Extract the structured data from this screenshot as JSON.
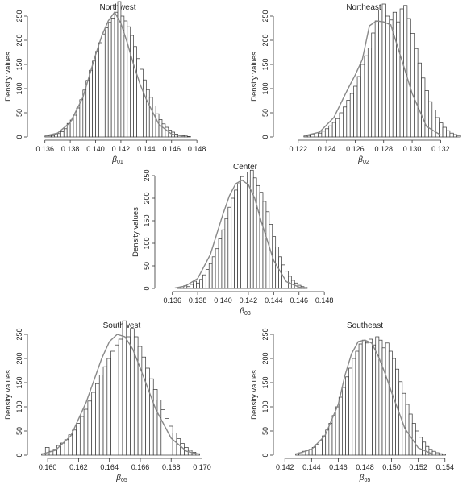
{
  "chart_data": [
    {
      "type": "bar",
      "title": "Northwest",
      "ylabel": "Density values",
      "xlabel": {
        "symbol": "β",
        "sub": "01"
      },
      "xlim": [
        0.135,
        0.1485
      ],
      "ylim": [
        0,
        250
      ],
      "xticks": [
        0.136,
        0.138,
        0.14,
        0.142,
        0.144,
        0.146,
        0.148
      ],
      "xtick_labels": [
        "0.136",
        "0.138",
        "0.140",
        "0.142",
        "0.144",
        "0.146",
        "0.148"
      ],
      "yticks": [
        0,
        50,
        100,
        150,
        200,
        250
      ],
      "ytick_labels": [
        "0",
        "50",
        "100",
        "150",
        "200",
        "250"
      ],
      "bin_start": 0.136,
      "bin_width": 0.00025,
      "values": [
        2,
        2,
        3,
        5,
        7,
        11,
        17,
        28,
        35,
        45,
        60,
        77,
        97,
        117,
        138,
        157,
        177,
        195,
        213,
        226,
        237,
        246,
        258,
        280,
        250,
        240,
        228,
        210,
        187,
        162,
        140,
        118,
        98,
        82,
        64,
        48,
        36,
        27,
        20,
        14,
        10,
        6,
        4,
        3,
        2,
        1
      ],
      "density_x": [
        0.136,
        0.137,
        0.138,
        0.139,
        0.14,
        0.1405,
        0.141,
        0.1415,
        0.142,
        0.1425,
        0.143,
        0.1435,
        0.144,
        0.145,
        0.146,
        0.147
      ],
      "density_y": [
        2,
        8,
        30,
        82,
        170,
        210,
        240,
        258,
        235,
        195,
        150,
        110,
        78,
        26,
        6,
        1
      ]
    },
    {
      "type": "bar",
      "title": "Northeast",
      "ylabel": "Density values",
      "xlabel": {
        "symbol": "β",
        "sub": "02"
      },
      "xlim": [
        0.1206,
        0.1326
      ],
      "ylim": [
        0,
        250
      ],
      "xticks": [
        0.122,
        0.124,
        0.126,
        0.128,
        0.13,
        0.132
      ],
      "xtick_labels": [
        "0.122",
        "0.124",
        "0.126",
        "0.128",
        "0.130",
        "0.132"
      ],
      "yticks": [
        0,
        50,
        100,
        150,
        200,
        250
      ],
      "ytick_labels": [
        "0",
        "50",
        "100",
        "150",
        "200",
        "250"
      ],
      "bin_start": 0.1224,
      "bin_width": 0.00025,
      "values": [
        2,
        3,
        6,
        4,
        8,
        12,
        17,
        23,
        30,
        38,
        50,
        62,
        76,
        90,
        105,
        125,
        150,
        168,
        184,
        215,
        240,
        263,
        275,
        250,
        242,
        258,
        238,
        265,
        272,
        245,
        214,
        183,
        153,
        122,
        96,
        73,
        56,
        40,
        29,
        20,
        13,
        8,
        5,
        3
      ],
      "density_x": [
        0.1224,
        0.1235,
        0.1245,
        0.1255,
        0.126,
        0.1265,
        0.127,
        0.1275,
        0.128,
        0.1285,
        0.129,
        0.13,
        0.131,
        0.132
      ],
      "density_y": [
        2,
        10,
        40,
        100,
        128,
        160,
        230,
        240,
        238,
        232,
        185,
        90,
        22,
        4
      ]
    },
    {
      "type": "bar",
      "title": "Center",
      "ylabel": "Density values",
      "xlabel": {
        "symbol": "β",
        "sub": "03"
      },
      "xlim": [
        0.135,
        0.1485
      ],
      "ylim": [
        0,
        250
      ],
      "xticks": [
        0.136,
        0.138,
        0.14,
        0.142,
        0.144,
        0.146,
        0.148
      ],
      "xtick_labels": [
        "0.136",
        "0.138",
        "0.140",
        "0.142",
        "0.144",
        "0.146",
        "0.148"
      ],
      "yticks": [
        0,
        50,
        100,
        150,
        200,
        250
      ],
      "ytick_labels": [
        "0",
        "50",
        "100",
        "150",
        "200",
        "250"
      ],
      "bin_start": 0.1364,
      "bin_width": 0.00025,
      "values": [
        2,
        4,
        6,
        4,
        9,
        16,
        12,
        20,
        30,
        42,
        55,
        70,
        88,
        110,
        130,
        155,
        180,
        200,
        218,
        232,
        248,
        258,
        240,
        262,
        245,
        228,
        213,
        193,
        170,
        142,
        115,
        92,
        70,
        52,
        38,
        27,
        18,
        12,
        7,
        4,
        2
      ],
      "density_x": [
        0.1362,
        0.137,
        0.138,
        0.139,
        0.14,
        0.1405,
        0.141,
        0.1415,
        0.142,
        0.1425,
        0.143,
        0.144,
        0.145,
        0.146,
        0.1465
      ],
      "density_y": [
        1,
        5,
        22,
        75,
        165,
        205,
        232,
        240,
        230,
        200,
        150,
        62,
        15,
        3,
        1
      ]
    },
    {
      "type": "bar",
      "title": "Southwest",
      "ylabel": "Density values",
      "xlabel": {
        "symbol": "β",
        "sub": "05"
      },
      "xlim": [
        0.159,
        0.1706
      ],
      "ylim": [
        0,
        250
      ],
      "xticks": [
        0.16,
        0.162,
        0.164,
        0.166,
        0.168,
        0.17
      ],
      "xtick_labels": [
        "0.160",
        "0.162",
        "0.164",
        "0.166",
        "0.168",
        "0.170"
      ],
      "yticks": [
        0,
        50,
        100,
        150,
        200,
        250
      ],
      "ytick_labels": [
        "0",
        "50",
        "100",
        "150",
        "200",
        "250"
      ],
      "bin_start": 0.1596,
      "bin_width": 0.00025,
      "values": [
        3,
        16,
        8,
        12,
        20,
        25,
        32,
        42,
        52,
        66,
        80,
        95,
        112,
        130,
        148,
        166,
        183,
        200,
        215,
        228,
        240,
        278,
        245,
        262,
        245,
        225,
        203,
        180,
        158,
        136,
        114,
        94,
        76,
        60,
        46,
        34,
        24,
        16,
        10,
        6,
        3
      ],
      "density_x": [
        0.1596,
        0.1605,
        0.1615,
        0.1625,
        0.1635,
        0.164,
        0.1645,
        0.165,
        0.1655,
        0.166,
        0.167,
        0.168,
        0.169,
        0.1698
      ],
      "density_y": [
        2,
        10,
        40,
        110,
        200,
        235,
        250,
        245,
        220,
        180,
        95,
        35,
        8,
        2
      ]
    },
    {
      "type": "bar",
      "title": "Southeast",
      "ylabel": "Density values",
      "xlabel": {
        "symbol": "β",
        "sub": "05"
      },
      "xlim": [
        0.1415,
        0.1545
      ],
      "ylim": [
        0,
        250
      ],
      "xticks": [
        0.142,
        0.144,
        0.146,
        0.148,
        0.15,
        0.152,
        0.154
      ],
      "xtick_labels": [
        "0.142",
        "0.144",
        "0.146",
        "0.148",
        "0.150",
        "0.152",
        "0.154"
      ],
      "yticks": [
        0,
        50,
        100,
        150,
        200,
        250
      ],
      "ytick_labels": [
        "0",
        "50",
        "100",
        "150",
        "200",
        "250"
      ],
      "bin_start": 0.1428,
      "bin_width": 0.00025,
      "values": [
        3,
        5,
        8,
        10,
        12,
        16,
        22,
        30,
        40,
        52,
        66,
        82,
        100,
        120,
        140,
        162,
        180,
        200,
        215,
        230,
        238,
        232,
        240,
        228,
        245,
        238,
        222,
        232,
        215,
        200,
        178,
        152,
        128,
        105,
        85,
        66,
        50,
        37,
        27,
        18,
        12,
        8,
        5,
        3,
        2
      ],
      "density_x": [
        0.1428,
        0.144,
        0.145,
        0.146,
        0.1465,
        0.147,
        0.1475,
        0.148,
        0.1485,
        0.149,
        0.1495,
        0.15,
        0.151,
        0.152,
        0.153
      ],
      "density_y": [
        2,
        12,
        40,
        105,
        165,
        210,
        235,
        238,
        232,
        205,
        170,
        130,
        55,
        15,
        3
      ]
    }
  ]
}
